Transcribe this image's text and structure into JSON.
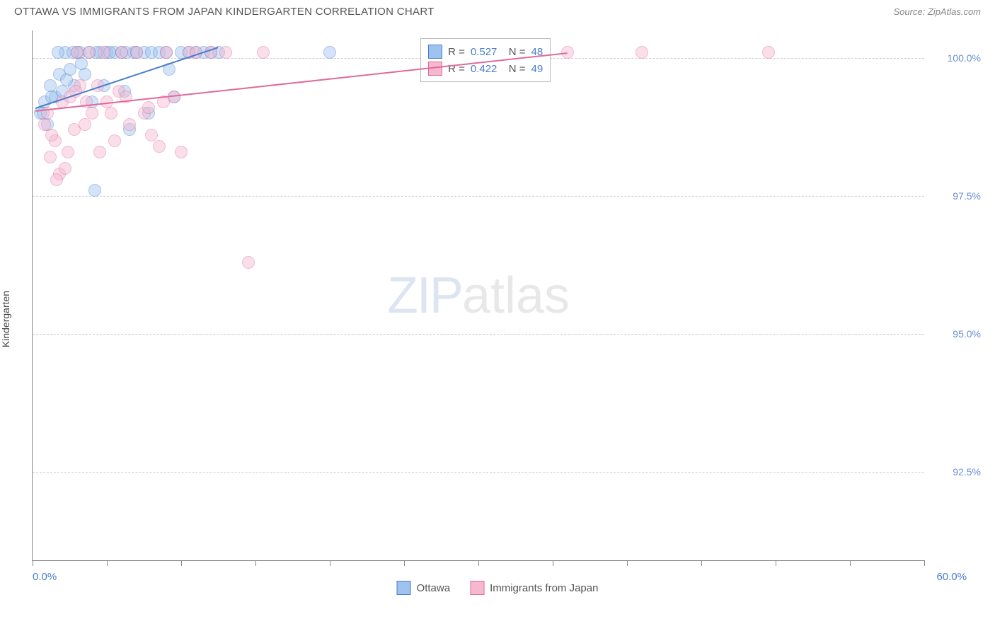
{
  "header": {
    "title": "OTTAWA VS IMMIGRANTS FROM JAPAN KINDERGARTEN CORRELATION CHART",
    "source": "Source: ZipAtlas.com"
  },
  "chart": {
    "type": "scatter",
    "ylabel": "Kindergarten",
    "xlim": [
      0,
      60
    ],
    "ylim": [
      90.9,
      100.5
    ],
    "xtick_positions": [
      0,
      5,
      10,
      15,
      20,
      25,
      30,
      35,
      40,
      45,
      50,
      55,
      60
    ],
    "ytick_positions": [
      92.5,
      95.0,
      97.5,
      100.0
    ],
    "ytick_labels": [
      "92.5%",
      "95.0%",
      "97.5%",
      "100.0%"
    ],
    "xlabel_min": "0.0%",
    "xlabel_max": "60.0%",
    "background_color": "#ffffff",
    "grid_color": "#cccccc",
    "axis_color": "#888888",
    "ylabel_color": "#6a8fd4",
    "xlabel_color": "#4a7ecc",
    "marker_size": 18,
    "marker_opacity": 0.45,
    "series": [
      {
        "name": "Ottawa",
        "color_fill": "#9ec3f0",
        "color_stroke": "#4a7ecc",
        "points": [
          [
            0.5,
            99.0
          ],
          [
            0.8,
            99.2
          ],
          [
            1.2,
            99.5
          ],
          [
            1.0,
            98.8
          ],
          [
            1.5,
            99.3
          ],
          [
            1.8,
            99.7
          ],
          [
            2.0,
            99.4
          ],
          [
            2.2,
            100.1
          ],
          [
            2.5,
            99.8
          ],
          [
            2.8,
            99.5
          ],
          [
            3.0,
            100.1
          ],
          [
            3.2,
            100.1
          ],
          [
            3.5,
            99.7
          ],
          [
            3.8,
            100.1
          ],
          [
            4.0,
            99.2
          ],
          [
            4.2,
            97.6
          ],
          [
            4.5,
            100.1
          ],
          [
            4.8,
            99.5
          ],
          [
            5.0,
            100.1
          ],
          [
            5.5,
            100.1
          ],
          [
            6.0,
            100.1
          ],
          [
            6.2,
            99.4
          ],
          [
            6.5,
            98.7
          ],
          [
            6.8,
            100.1
          ],
          [
            7.0,
            100.1
          ],
          [
            7.5,
            100.1
          ],
          [
            7.8,
            99.0
          ],
          [
            8.0,
            100.1
          ],
          [
            8.5,
            100.1
          ],
          [
            9.0,
            100.1
          ],
          [
            9.5,
            99.3
          ],
          [
            10.0,
            100.1
          ],
          [
            10.5,
            100.1
          ],
          [
            11.0,
            100.1
          ],
          [
            11.5,
            100.1
          ],
          [
            12.0,
            100.1
          ],
          [
            12.5,
            100.1
          ],
          [
            20.0,
            100.1
          ],
          [
            0.7,
            99.0
          ],
          [
            1.3,
            99.3
          ],
          [
            1.7,
            100.1
          ],
          [
            2.3,
            99.6
          ],
          [
            2.7,
            100.1
          ],
          [
            3.3,
            99.9
          ],
          [
            4.3,
            100.1
          ],
          [
            5.2,
            100.1
          ],
          [
            6.3,
            100.1
          ],
          [
            9.2,
            99.8
          ]
        ],
        "trend": {
          "x1": 0.2,
          "y1": 99.1,
          "x2": 12.5,
          "y2": 100.2
        },
        "stats": {
          "R": "0.527",
          "N": "48"
        }
      },
      {
        "name": "Immigrants from Japan",
        "color_fill": "#f5b8cf",
        "color_stroke": "#e06a9a",
        "points": [
          [
            0.8,
            98.8
          ],
          [
            1.0,
            99.0
          ],
          [
            1.2,
            98.2
          ],
          [
            1.5,
            98.5
          ],
          [
            1.8,
            97.9
          ],
          [
            2.0,
            99.2
          ],
          [
            2.2,
            98.0
          ],
          [
            2.5,
            99.3
          ],
          [
            2.8,
            98.7
          ],
          [
            3.0,
            100.1
          ],
          [
            3.2,
            99.5
          ],
          [
            3.5,
            98.8
          ],
          [
            3.8,
            100.1
          ],
          [
            4.0,
            99.0
          ],
          [
            4.5,
            98.3
          ],
          [
            4.8,
            100.1
          ],
          [
            5.0,
            99.2
          ],
          [
            5.5,
            98.5
          ],
          [
            5.8,
            99.4
          ],
          [
            6.0,
            100.1
          ],
          [
            6.5,
            98.8
          ],
          [
            7.0,
            100.1
          ],
          [
            7.5,
            99.0
          ],
          [
            8.0,
            98.6
          ],
          [
            8.5,
            98.4
          ],
          [
            9.0,
            100.1
          ],
          [
            9.5,
            99.3
          ],
          [
            10.0,
            98.3
          ],
          [
            10.5,
            100.1
          ],
          [
            11.0,
            100.1
          ],
          [
            12.0,
            100.1
          ],
          [
            13.0,
            100.1
          ],
          [
            14.5,
            96.3
          ],
          [
            15.5,
            100.1
          ],
          [
            28.5,
            100.1
          ],
          [
            31.0,
            99.9
          ],
          [
            36.0,
            100.1
          ],
          [
            41.0,
            100.1
          ],
          [
            49.5,
            100.1
          ],
          [
            1.3,
            98.6
          ],
          [
            1.6,
            97.8
          ],
          [
            2.4,
            98.3
          ],
          [
            2.9,
            99.4
          ],
          [
            3.6,
            99.2
          ],
          [
            4.4,
            99.5
          ],
          [
            5.3,
            99.0
          ],
          [
            6.3,
            99.3
          ],
          [
            7.8,
            99.1
          ],
          [
            8.8,
            99.2
          ]
        ],
        "trend": {
          "x1": 0.2,
          "y1": 99.05,
          "x2": 36.0,
          "y2": 100.1
        },
        "stats": {
          "R": "0.422",
          "N": "49"
        }
      }
    ],
    "legend_box": {
      "left_pct": 43.5,
      "top_pct": 1.5
    }
  },
  "bottom_legend": {
    "items": [
      "Ottawa",
      "Immigrants from Japan"
    ]
  },
  "watermark": {
    "part1": "ZIP",
    "part2": "atlas"
  }
}
